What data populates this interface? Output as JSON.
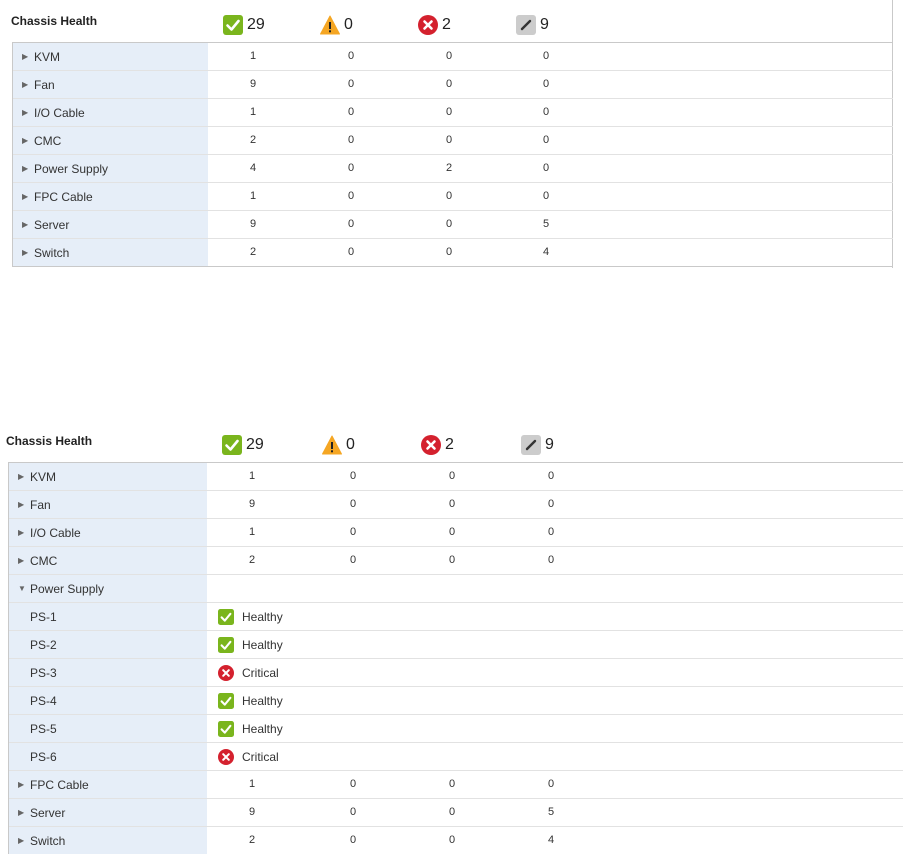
{
  "colors": {
    "ok": "#7ab51d",
    "warning": "#f5a623",
    "critical": "#d4212e",
    "unknown": "#cccccc",
    "name_bg": "#e6eef8"
  },
  "panel_collapsed": {
    "title": "Chassis Health",
    "summary": [
      {
        "icon": "check-icon",
        "count": "29"
      },
      {
        "icon": "warning-icon",
        "count": "0"
      },
      {
        "icon": "error-icon",
        "count": "2"
      },
      {
        "icon": "unknown-icon",
        "count": "9"
      }
    ],
    "rows": [
      {
        "name": "KVM",
        "values": [
          "1",
          "0",
          "0",
          "0"
        ]
      },
      {
        "name": "Fan",
        "values": [
          "9",
          "0",
          "0",
          "0"
        ]
      },
      {
        "name": "I/O Cable",
        "values": [
          "1",
          "0",
          "0",
          "0"
        ]
      },
      {
        "name": "CMC",
        "values": [
          "2",
          "0",
          "0",
          "0"
        ]
      },
      {
        "name": "Power Supply",
        "values": [
          "4",
          "0",
          "2",
          "0"
        ]
      },
      {
        "name": "FPC Cable",
        "values": [
          "1",
          "0",
          "0",
          "0"
        ]
      },
      {
        "name": "Server",
        "values": [
          "9",
          "0",
          "0",
          "5"
        ]
      },
      {
        "name": "Switch",
        "values": [
          "2",
          "0",
          "0",
          "4"
        ]
      }
    ]
  },
  "panel_expanded": {
    "title": "Chassis Health",
    "summary": [
      {
        "icon": "check-icon",
        "count": "29"
      },
      {
        "icon": "warning-icon",
        "count": "0"
      },
      {
        "icon": "error-icon",
        "count": "2"
      },
      {
        "icon": "unknown-icon",
        "count": "9"
      }
    ],
    "rows": [
      {
        "name": "KVM",
        "values": [
          "1",
          "0",
          "0",
          "0"
        ]
      },
      {
        "name": "Fan",
        "values": [
          "9",
          "0",
          "0",
          "0"
        ]
      },
      {
        "name": "I/O Cable",
        "values": [
          "1",
          "0",
          "0",
          "0"
        ]
      },
      {
        "name": "CMC",
        "values": [
          "2",
          "0",
          "0",
          "0"
        ]
      },
      {
        "name": "Power Supply"
      },
      {
        "name": "PS-1",
        "status": "Healthy",
        "icon": "check-icon"
      },
      {
        "name": "PS-2",
        "status": "Healthy",
        "icon": "check-icon"
      },
      {
        "name": "PS-3",
        "status": "Critical",
        "icon": "error-icon"
      },
      {
        "name": "PS-4",
        "status": "Healthy",
        "icon": "check-icon"
      },
      {
        "name": "PS-5",
        "status": "Healthy",
        "icon": "check-icon"
      },
      {
        "name": "PS-6",
        "status": "Critical",
        "icon": "error-icon"
      },
      {
        "name": "FPC Cable",
        "values": [
          "1",
          "0",
          "0",
          "0"
        ]
      },
      {
        "name": "Server",
        "values": [
          "9",
          "0",
          "0",
          "5"
        ]
      },
      {
        "name": "Switch",
        "values": [
          "2",
          "0",
          "0",
          "4"
        ]
      }
    ]
  }
}
